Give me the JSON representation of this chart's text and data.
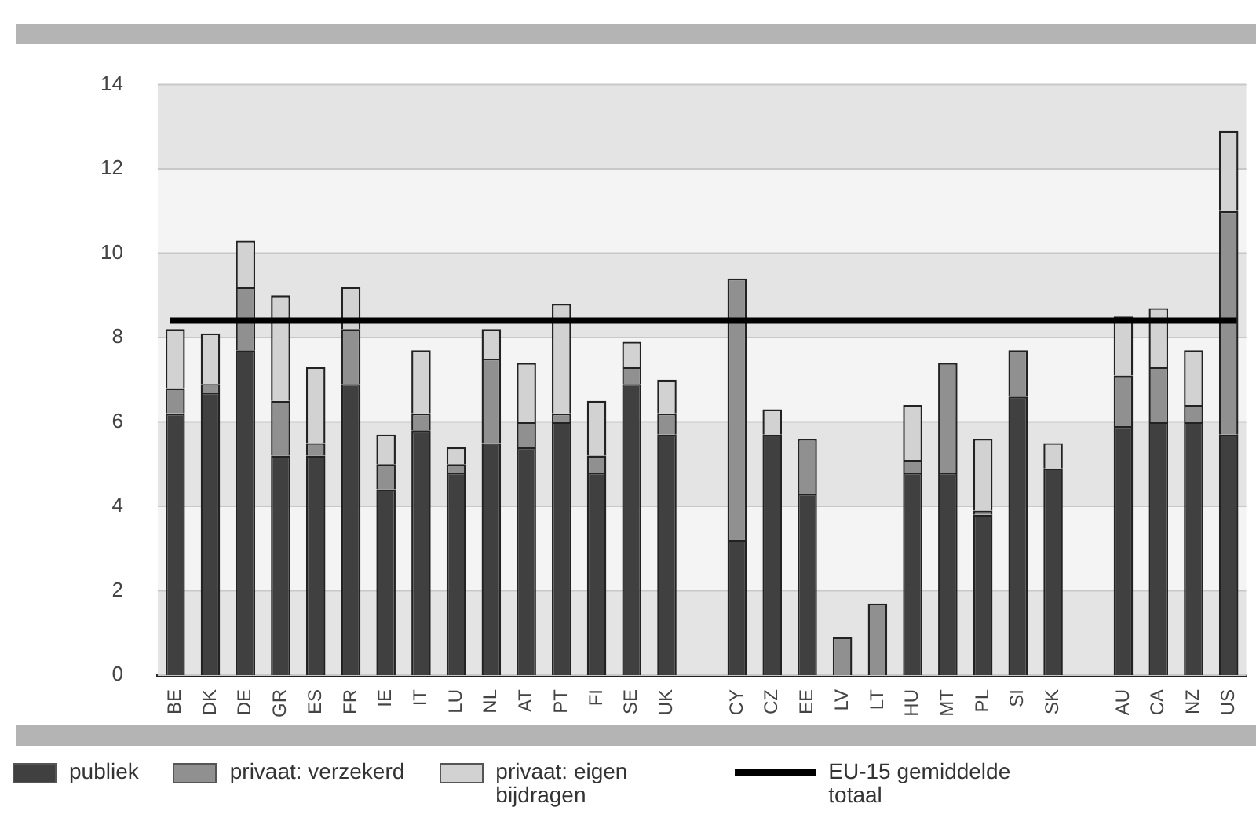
{
  "chart_data": {
    "type": "bar",
    "stacked": true,
    "categories": [
      "BE",
      "DK",
      "DE",
      "GR",
      "ES",
      "FR",
      "IE",
      "IT",
      "LU",
      "NL",
      "AT",
      "PT",
      "FI",
      "SE",
      "UK",
      null,
      "CY",
      "CZ",
      "EE",
      "LV",
      "LT",
      "HU",
      "MT",
      "PL",
      "SI",
      "SK",
      null,
      "AU",
      "CA",
      "NZ",
      "US"
    ],
    "series": [
      {
        "name": "publiek",
        "color": "#404040",
        "values": [
          6.2,
          6.7,
          7.7,
          5.2,
          5.2,
          6.9,
          4.4,
          5.8,
          4.8,
          5.5,
          5.4,
          6.0,
          4.8,
          6.9,
          5.7,
          null,
          3.2,
          5.7,
          4.3,
          0,
          0,
          4.8,
          4.8,
          3.8,
          6.6,
          4.9,
          null,
          5.9,
          6.0,
          6.0,
          5.7
        ]
      },
      {
        "name": "privaat: verzekerd",
        "color": "#909090",
        "values": [
          0.6,
          0.2,
          1.5,
          1.3,
          0.3,
          1.3,
          0.6,
          0.4,
          0.2,
          2.0,
          0.6,
          0.2,
          0.4,
          0.4,
          0.5,
          null,
          6.2,
          0,
          1.3,
          0.9,
          1.7,
          0.3,
          2.6,
          0.1,
          1.1,
          0,
          null,
          1.2,
          1.3,
          0.4,
          5.3
        ]
      },
      {
        "name": "privaat: eigen bijdragen",
        "color": "#d2d2d2",
        "values": [
          1.4,
          1.2,
          1.1,
          2.5,
          1.8,
          1.0,
          0.7,
          1.5,
          0.4,
          0.7,
          1.4,
          2.6,
          1.3,
          0.6,
          0.8,
          null,
          0,
          0.6,
          0,
          0,
          0,
          1.3,
          0,
          1.7,
          0,
          0.6,
          null,
          1.4,
          1.4,
          1.3,
          1.9
        ]
      }
    ],
    "ylim": [
      0,
      14
    ],
    "yticks": [
      0,
      2,
      4,
      6,
      8,
      10,
      12,
      14
    ],
    "grid": "y",
    "legend": "bottom",
    "ref_lines": [
      {
        "axis": "y",
        "value": 8.4,
        "label": "EU-15 gemiddelde totaal",
        "color": "#000000"
      }
    ]
  }
}
